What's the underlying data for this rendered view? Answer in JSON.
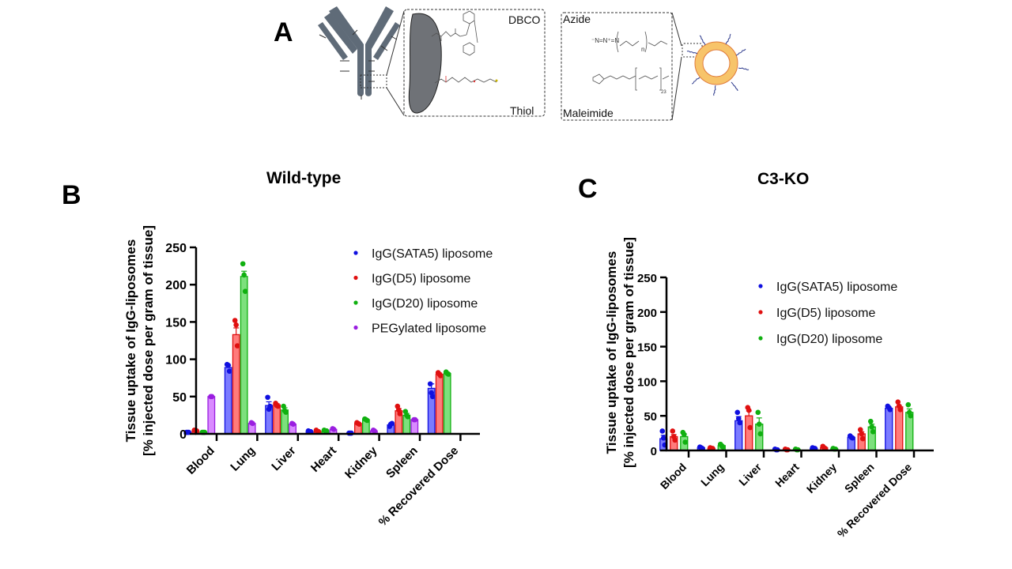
{
  "panels": {
    "a_label": "A",
    "b_label": "B",
    "c_label": "C"
  },
  "schematic": {
    "dbco_label": "DBCO",
    "thiol_label": "Thiol",
    "azide_label": "Azide",
    "maleimide_label": "Maleimide",
    "peg_subscript_n": "n",
    "peg_subscript_23": "23",
    "colors": {
      "antibody": "#5f6b78",
      "liposome_ring": "#f7c46a",
      "liposome_edge": "#e07a3a",
      "peg_chain": "#2d3a8c"
    }
  },
  "colors": {
    "blue_fill": "#7b7bff",
    "blue_stroke": "#1010e0",
    "red_fill": "#ff7b7b",
    "red_stroke": "#e01010",
    "green_fill": "#7de07d",
    "green_stroke": "#10b010",
    "purple_fill": "#d98aff",
    "purple_stroke": "#9a1ee0"
  },
  "chart_data": [
    {
      "type": "bar",
      "title": "Wild-type",
      "xlabel": "",
      "ylabel_line1": "Tissue uptake of IgG-liposomes",
      "ylabel_line2": "[% injected dose per gram of tissue]",
      "ylim": [
        0,
        250
      ],
      "yticks": [
        0,
        50,
        100,
        150,
        200,
        250
      ],
      "categories": [
        "Blood",
        "Lung",
        "Liver",
        "Heart",
        "Kidney",
        "Spleen",
        "% Recovered Dose"
      ],
      "legend_position": "top-right",
      "grid": false,
      "series": [
        {
          "name": "IgG(SATA5) liposome",
          "color_key": "blue",
          "values": [
            2,
            89,
            38,
            3,
            1,
            12,
            61
          ],
          "points": [
            [
              2,
              2,
              2
            ],
            [
              93,
              92,
              84
            ],
            [
              49,
              33,
              37
            ],
            [
              4,
              3,
              3
            ],
            [
              1,
              1,
              1
            ],
            [
              10,
              13,
              14
            ],
            [
              67,
              55,
              50
            ]
          ],
          "errors": [
            0.3,
            3,
            5,
            0.5,
            0.2,
            1.5,
            6
          ]
        },
        {
          "name": "IgG(D5) liposome",
          "color_key": "red",
          "values": [
            4,
            133,
            39,
            3,
            14,
            31,
            80
          ],
          "points": [
            [
              5,
              4,
              4
            ],
            [
              152,
              146,
              118
            ],
            [
              41,
              38,
              37
            ],
            [
              5,
              3,
              3
            ],
            [
              15,
              14,
              13
            ],
            [
              37,
              32,
              27
            ],
            [
              82,
              80,
              78
            ]
          ],
          "errors": [
            0.5,
            9,
            1.5,
            0.5,
            1,
            3,
            1.5
          ]
        },
        {
          "name": "IgG(D20) liposome",
          "color_key": "green",
          "values": [
            2,
            211,
            32,
            4,
            19,
            25,
            81
          ],
          "points": [
            [
              2,
              2,
              2
            ],
            [
              228,
              213,
              191
            ],
            [
              37,
              31,
              29
            ],
            [
              5,
              4,
              4
            ],
            [
              20,
              19,
              18
            ],
            [
              30,
              25,
              23
            ],
            [
              83,
              81,
              80
            ]
          ],
          "errors": [
            0.3,
            7,
            3,
            0.5,
            1,
            2.5,
            1
          ]
        },
        {
          "name": "PEGylated liposome",
          "color_key": "purple",
          "values": [
            50,
            14,
            13,
            6,
            4,
            19
          ],
          "points": [
            [
              50,
              50
            ],
            [
              15,
              14
            ],
            [
              14,
              13
            ],
            [
              7,
              6
            ],
            [
              5,
              4
            ],
            [
              19,
              19
            ]
          ],
          "errors": [
            0.5,
            0.5,
            0.5,
            1,
            0.5,
            0.5
          ]
        }
      ]
    },
    {
      "type": "bar",
      "title": "C3-KO",
      "xlabel": "",
      "ylabel_line1": "Tissue uptake of IgG-liposomes",
      "ylabel_line2": "[% injected dose per gram of tissue]",
      "ylim": [
        0,
        250
      ],
      "yticks": [
        0,
        50,
        100,
        150,
        200,
        250
      ],
      "categories": [
        "Blood",
        "Lung",
        "Liver",
        "Heart",
        "Kidney",
        "Spleen",
        "% Recovered Dose"
      ],
      "legend_position": "top-right",
      "grid": false,
      "series": [
        {
          "name": "IgG(SATA5) liposome",
          "color_key": "blue",
          "values": [
            17,
            4,
            43,
            1,
            3,
            19,
            61
          ],
          "points": [
            [
              28,
              18,
              8
            ],
            [
              5,
              4,
              3
            ],
            [
              55,
              46,
              40
            ],
            [
              2,
              1,
              1
            ],
            [
              4,
              3,
              3
            ],
            [
              21,
              19,
              18
            ],
            [
              64,
              62,
              59
            ]
          ],
          "errors": [
            5,
            0.5,
            6,
            0.3,
            0.5,
            1,
            1.5
          ]
        },
        {
          "name": "IgG(D5) liposome",
          "color_key": "red",
          "values": [
            20,
            3,
            50,
            1,
            4,
            24,
            63
          ],
          "points": [
            [
              28,
              20,
              15
            ],
            [
              4,
              3,
              3
            ],
            [
              62,
              58,
              33
            ],
            [
              2,
              1,
              1
            ],
            [
              6,
              4,
              3
            ],
            [
              30,
              24,
              17
            ],
            [
              70,
              64,
              59
            ]
          ],
          "errors": [
            3,
            0.3,
            7,
            0.3,
            1,
            3,
            2
          ]
        },
        {
          "name": "IgG(D20) liposome",
          "color_key": "green",
          "values": [
            20,
            7,
            38,
            1,
            2,
            34,
            55
          ],
          "points": [
            [
              26,
              23,
              12
            ],
            [
              9,
              7,
              5
            ],
            [
              55,
              38,
              24
            ],
            [
              2,
              1,
              1
            ],
            [
              3,
              2,
              2
            ],
            [
              42,
              34,
              27
            ],
            [
              66,
              55,
              50
            ]
          ],
          "errors": [
            4,
            1,
            9,
            0.3,
            0.3,
            4,
            5
          ]
        }
      ]
    }
  ]
}
